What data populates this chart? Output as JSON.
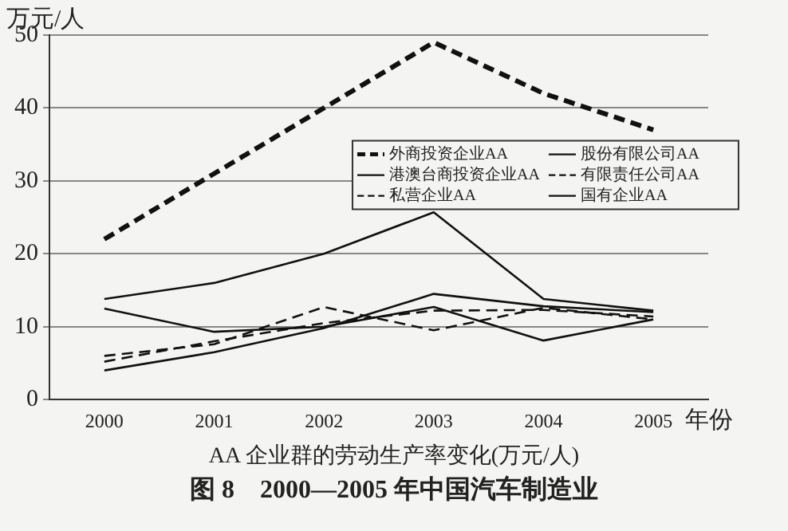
{
  "chart_data": {
    "type": "line",
    "ylabel": "万元/人",
    "xlabel": "年份",
    "categories": [
      "2000",
      "2001",
      "2002",
      "2003",
      "2004",
      "2005"
    ],
    "series": [
      {
        "name": "外商投资企业AA",
        "color": "#111111",
        "line_style": "dashed",
        "values": [
          22,
          31,
          40,
          49,
          42,
          37
        ]
      },
      {
        "name": "港澳台商投资企业AA",
        "color": "#111111",
        "line_style": "solid",
        "values": [
          13.8,
          16,
          20,
          25.7,
          13.8,
          12.2
        ]
      },
      {
        "name": "私营企业AA",
        "color": "#111111",
        "line_style": "dashed",
        "values": [
          5.2,
          8,
          10.5,
          12.2,
          12.3,
          11.4
        ]
      },
      {
        "name": "股份有限公司AA",
        "color": "#111111",
        "line_style": "solid",
        "values": [
          4,
          6.5,
          9.8,
          14.5,
          12.8,
          12
        ]
      },
      {
        "name": "有限责任公司AA",
        "color": "#111111",
        "line_style": "dashed",
        "values": [
          6,
          7.6,
          12.7,
          9.5,
          12.6,
          11
        ]
      },
      {
        "name": "国有企业AA",
        "color": "#111111",
        "line_style": "solid",
        "values": [
          12.5,
          9.3,
          10,
          12.7,
          8.1,
          11
        ]
      }
    ],
    "ylim": [
      0,
      50
    ],
    "yticks": [
      0,
      10,
      20,
      30,
      40,
      50
    ],
    "grid": "y",
    "legend": "right",
    "marker": "none",
    "annotations": [
      "AA 企业群的劳动生产率变化(万元/人)",
      "图 8　2000—2005 年中国汽车制造业"
    ]
  }
}
